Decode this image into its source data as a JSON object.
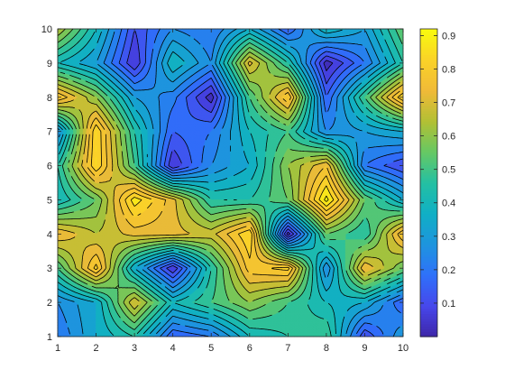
{
  "chart_data": {
    "type": "contourf",
    "x": [
      1,
      2,
      3,
      4,
      5,
      6,
      7,
      8,
      9,
      10
    ],
    "y": [
      1,
      2,
      3,
      4,
      5,
      6,
      7,
      8,
      9,
      10
    ],
    "z": [
      [
        0.2,
        0.35,
        0.45,
        0.15,
        0.2,
        0.4,
        0.45,
        0.5,
        0.1,
        0.3
      ],
      [
        0.25,
        0.35,
        0.7,
        0.4,
        0.5,
        0.6,
        0.5,
        0.4,
        0.35,
        0.15
      ],
      [
        0.5,
        0.82,
        0.35,
        0.05,
        0.45,
        0.78,
        0.82,
        0.25,
        0.75,
        0.55
      ],
      [
        0.75,
        0.65,
        0.72,
        0.72,
        0.68,
        0.85,
        0.02,
        0.55,
        0.45,
        0.8
      ],
      [
        0.4,
        0.55,
        0.88,
        0.72,
        0.45,
        0.45,
        0.55,
        0.92,
        0.55,
        0.35
      ],
      [
        0.45,
        0.85,
        0.5,
        0.05,
        0.25,
        0.35,
        0.6,
        0.75,
        0.2,
        0.1
      ],
      [
        0.25,
        0.85,
        0.45,
        0.15,
        0.2,
        0.4,
        0.5,
        0.25,
        0.3,
        0.35
      ],
      [
        0.8,
        0.6,
        0.3,
        0.22,
        0.02,
        0.5,
        0.8,
        0.15,
        0.5,
        0.85
      ],
      [
        0.4,
        0.3,
        0.05,
        0.4,
        0.25,
        0.72,
        0.45,
        0.02,
        0.2,
        0.45
      ],
      [
        0.65,
        0.4,
        0.1,
        0.25,
        0.2,
        0.35,
        0.15,
        0.4,
        0.3,
        0.55
      ]
    ],
    "levels": [
      0.0,
      0.05,
      0.1,
      0.15,
      0.2,
      0.25,
      0.3,
      0.35,
      0.4,
      0.45,
      0.5,
      0.55,
      0.6,
      0.65,
      0.7,
      0.75,
      0.8,
      0.85,
      0.9,
      0.95
    ],
    "xlim": [
      1,
      10
    ],
    "ylim": [
      1,
      10
    ],
    "x_ticks": [
      "1",
      "2",
      "3",
      "4",
      "5",
      "6",
      "7",
      "8",
      "9",
      "10"
    ],
    "y_ticks": [
      "1",
      "2",
      "3",
      "4",
      "5",
      "6",
      "7",
      "8",
      "9",
      "10"
    ],
    "colorbar": {
      "limits": [
        0.0,
        0.92
      ],
      "ticks": [
        "0.1",
        "0.2",
        "0.3",
        "0.4",
        "0.5",
        "0.6",
        "0.7",
        "0.8",
        "0.9"
      ],
      "tick_values": [
        0.1,
        0.2,
        0.3,
        0.4,
        0.5,
        0.6,
        0.7,
        0.8,
        0.9
      ],
      "colormap": "parula"
    },
    "title": "",
    "xlabel": "",
    "ylabel": "",
    "grid": false,
    "legend": "none"
  }
}
